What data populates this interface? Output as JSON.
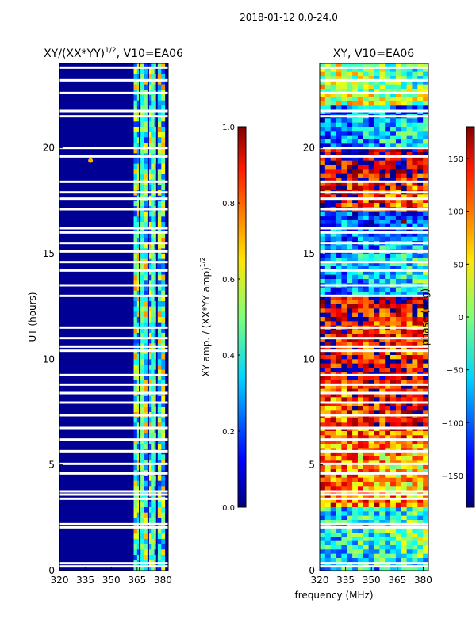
{
  "figure_title": "2018-01-12 0.0-24.0",
  "shared_xlabel": "frequency (MHz)",
  "chart_data": [
    {
      "type": "heatmap",
      "title": "XY/(XX*YY)",
      "title_exponent": "1/2",
      "title_suffix": ", V10=EA06",
      "xlabel": "",
      "ylabel": "UT (hours)",
      "xlim": [
        320,
        383
      ],
      "ylim": [
        0,
        24
      ],
      "xticks": [
        320,
        335,
        350,
        365,
        380
      ],
      "yticks": [
        0,
        5,
        10,
        15,
        20
      ],
      "colormap": "jet",
      "colorbar": {
        "label": "XY amp. / (XX*YY amp)",
        "label_exponent": "1/2",
        "range": [
          0.0,
          1.0
        ],
        "ticks": [
          "0.0",
          "0.2",
          "0.4",
          "0.6",
          "0.8",
          "1.0"
        ]
      },
      "background_value": 0.02,
      "active_band_MHz": [
        363,
        381
      ],
      "active_band_value_range": [
        0.15,
        0.75
      ],
      "rfi_spike": {
        "freq_MHz": 338,
        "ut_hours": 19.4
      },
      "flagged_ut_hours": [
        0.2,
        0.35,
        2.05,
        2.2,
        3.4,
        3.6,
        3.75,
        4.6,
        5.05,
        5.65,
        6.2,
        6.75,
        7.35,
        7.95,
        8.4,
        8.8,
        9.25,
        10.4,
        10.6,
        11.0,
        11.5,
        13.0,
        13.5,
        14.2,
        14.6,
        15.1,
        15.5,
        16.0,
        16.2,
        17.1,
        17.6,
        17.9,
        18.4,
        19.6,
        20.0,
        21.5,
        21.75,
        22.6,
        23.2,
        23.8
      ]
    },
    {
      "type": "heatmap",
      "title": "XY, V10=EA06",
      "xlabel": "frequency (MHz)",
      "ylabel": "",
      "xlim": [
        320,
        383
      ],
      "ylim": [
        0,
        24
      ],
      "xticks": [
        320,
        335,
        350,
        365,
        380
      ],
      "yticks": [
        0,
        5,
        10,
        15,
        20
      ],
      "colormap": "jet",
      "colorbar": {
        "label": "phase (deg)",
        "range": [
          -180,
          180
        ],
        "ticks": [
          "−150",
          "−100",
          "−50",
          "0",
          "50",
          "100",
          "150"
        ]
      },
      "dominant_phase_by_ut": [
        {
          "ut_from": 0,
          "ut_to": 3,
          "phase_deg": -60
        },
        {
          "ut_from": 3,
          "ut_to": 9,
          "phase_deg": 100
        },
        {
          "ut_from": 9,
          "ut_to": 13,
          "phase_deg": 150
        },
        {
          "ut_from": 13,
          "ut_to": 17,
          "phase_deg": -90
        },
        {
          "ut_from": 17,
          "ut_to": 20,
          "phase_deg": 150
        },
        {
          "ut_from": 20,
          "ut_to": 22,
          "phase_deg": -100
        },
        {
          "ut_from": 22,
          "ut_to": 24,
          "phase_deg": 30
        }
      ],
      "flagged_ut_hours": [
        0.2,
        0.35,
        2.05,
        2.2,
        3.4,
        3.6,
        3.75,
        4.6,
        5.05,
        5.65,
        6.2,
        6.75,
        7.35,
        7.95,
        8.4,
        8.8,
        9.25,
        10.4,
        10.6,
        11.0,
        11.5,
        13.0,
        13.5,
        14.2,
        14.6,
        15.1,
        15.5,
        16.0,
        16.2,
        17.1,
        17.6,
        17.9,
        18.4,
        19.6,
        20.0,
        21.5,
        21.75,
        22.6,
        23.2,
        23.8
      ]
    }
  ]
}
